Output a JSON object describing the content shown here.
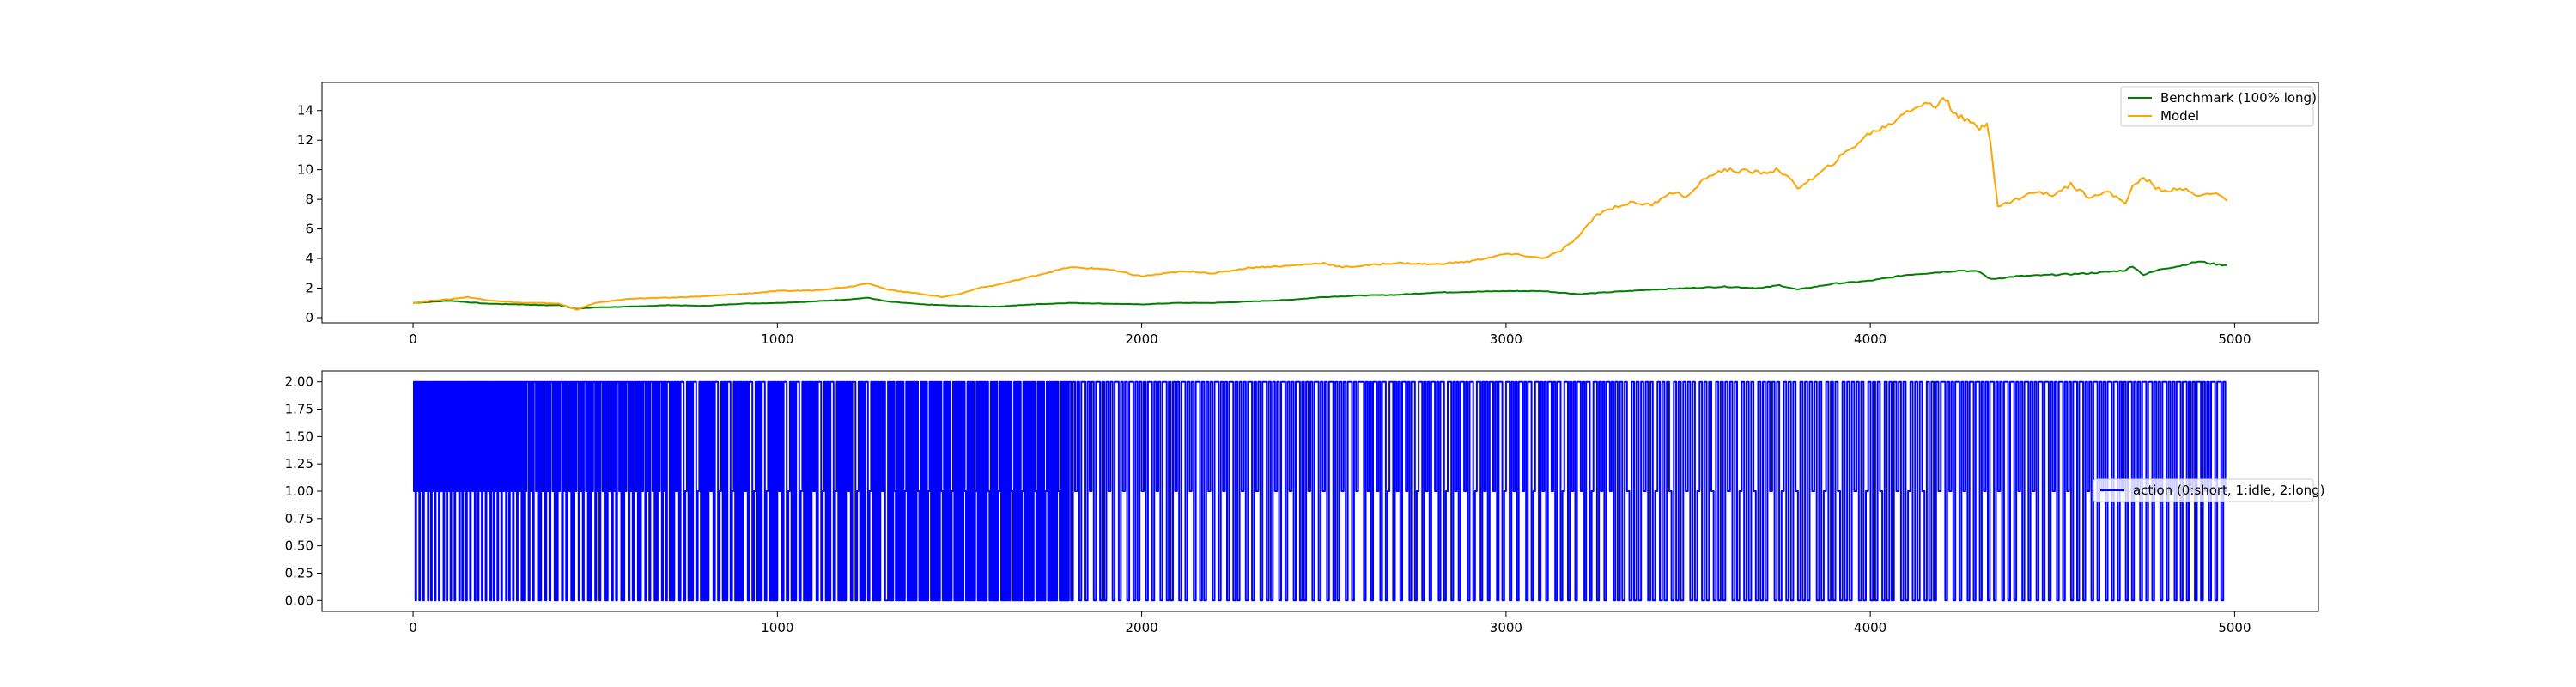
{
  "chart_data": [
    {
      "type": "line",
      "xlim": [
        -250,
        5230
      ],
      "ylim": [
        -0.35,
        15.9
      ],
      "xticks": [
        0,
        1000,
        2000,
        3000,
        4000,
        5000
      ],
      "xtick_labels": [
        "0",
        "1000",
        "2000",
        "3000",
        "4000",
        "5000"
      ],
      "yticks": [
        0,
        2,
        4,
        6,
        8,
        10,
        12,
        14
      ],
      "ytick_labels": [
        "0",
        "2",
        "4",
        "6",
        "8",
        "10",
        "12",
        "14"
      ],
      "grid": false,
      "legend_position": "top-right",
      "series": [
        {
          "name": "Benchmark (100% long)",
          "color": "#008000",
          "x": [
            0,
            100,
            200,
            300,
            350,
            400,
            450,
            500,
            600,
            700,
            800,
            900,
            1000,
            1100,
            1200,
            1250,
            1300,
            1400,
            1500,
            1600,
            1700,
            1800,
            1900,
            2000,
            2100,
            2200,
            2300,
            2400,
            2500,
            2600,
            2700,
            2800,
            2900,
            3000,
            3100,
            3200,
            3300,
            3400,
            3500,
            3600,
            3700,
            3750,
            3800,
            3900,
            4000,
            4100,
            4200,
            4250,
            4300,
            4330,
            4400,
            4500,
            4600,
            4700,
            4720,
            4750,
            4800,
            4850,
            4900,
            4950,
            4980
          ],
          "values": [
            1.0,
            1.15,
            0.95,
            0.9,
            0.85,
            0.85,
            0.6,
            0.7,
            0.75,
            0.85,
            0.8,
            0.95,
            1.0,
            1.1,
            1.25,
            1.35,
            1.1,
            0.9,
            0.8,
            0.75,
            0.9,
            1.0,
            0.95,
            0.9,
            1.0,
            1.0,
            1.1,
            1.2,
            1.4,
            1.5,
            1.55,
            1.7,
            1.75,
            1.8,
            1.8,
            1.6,
            1.75,
            1.9,
            2.0,
            2.1,
            2.0,
            2.2,
            1.9,
            2.3,
            2.5,
            2.9,
            3.1,
            3.2,
            3.1,
            2.6,
            2.8,
            2.9,
            3.0,
            3.2,
            3.5,
            2.9,
            3.3,
            3.5,
            3.8,
            3.6,
            3.55
          ]
        },
        {
          "name": "Model",
          "color": "#ffa500",
          "x": [
            0,
            50,
            100,
            150,
            200,
            300,
            350,
            400,
            450,
            500,
            600,
            700,
            800,
            900,
            1000,
            1100,
            1200,
            1250,
            1300,
            1400,
            1450,
            1500,
            1550,
            1600,
            1700,
            1800,
            1900,
            2000,
            2100,
            2150,
            2200,
            2300,
            2400,
            2500,
            2550,
            2600,
            2700,
            2800,
            2900,
            3000,
            3050,
            3100,
            3150,
            3200,
            3250,
            3300,
            3350,
            3400,
            3450,
            3500,
            3550,
            3600,
            3700,
            3750,
            3800,
            3850,
            3900,
            3950,
            4000,
            4050,
            4100,
            4150,
            4180,
            4200,
            4220,
            4250,
            4300,
            4320,
            4330,
            4340,
            4350,
            4400,
            4450,
            4500,
            4550,
            4600,
            4650,
            4700,
            4720,
            4750,
            4800,
            4850,
            4900,
            4950,
            4980
          ],
          "values": [
            1.0,
            1.15,
            1.25,
            1.4,
            1.2,
            1.0,
            1.0,
            0.95,
            0.55,
            1.0,
            1.3,
            1.35,
            1.45,
            1.6,
            1.8,
            1.85,
            2.1,
            2.35,
            1.9,
            1.6,
            1.4,
            1.6,
            2.0,
            2.2,
            2.8,
            3.4,
            3.3,
            2.8,
            3.1,
            3.1,
            3.0,
            3.4,
            3.5,
            3.7,
            3.4,
            3.5,
            3.7,
            3.6,
            3.8,
            4.3,
            4.2,
            4.0,
            4.5,
            5.5,
            7.0,
            7.5,
            7.8,
            7.6,
            8.5,
            8.2,
            9.5,
            10.0,
            9.8,
            10.0,
            8.8,
            9.5,
            10.5,
            11.5,
            12.5,
            13.0,
            14.0,
            14.5,
            14.2,
            15.0,
            14.2,
            13.5,
            12.8,
            13.2,
            12.0,
            9.5,
            7.5,
            8.0,
            8.5,
            8.3,
            9.0,
            8.2,
            8.5,
            7.8,
            8.8,
            9.5,
            8.5,
            8.8,
            8.2,
            8.5,
            7.9
          ]
        }
      ]
    },
    {
      "type": "line",
      "xlim": [
        -250,
        5230
      ],
      "ylim": [
        -0.1,
        2.1
      ],
      "xticks": [
        0,
        1000,
        2000,
        3000,
        4000,
        5000
      ],
      "xtick_labels": [
        "0",
        "1000",
        "2000",
        "3000",
        "4000",
        "5000"
      ],
      "yticks": [
        0,
        0.25,
        0.5,
        0.75,
        1.0,
        1.25,
        1.5,
        1.75,
        2.0
      ],
      "ytick_labels": [
        "0.00",
        "0.25",
        "0.50",
        "0.75",
        "1.00",
        "1.25",
        "1.50",
        "1.75",
        "2.00"
      ],
      "grid": false,
      "legend_position": "center-right",
      "series": [
        {
          "name": "action (0:short, 1:idle, 2:long)",
          "color": "#0000ff",
          "x_start": 0,
          "x_end": 4980,
          "discrete_values": [
            0,
            1,
            2
          ],
          "segments": [
            {
              "x": [
                0,
                300
              ],
              "pattern": [
                2,
                1,
                2,
                0,
                2,
                2,
                1,
                2,
                0,
                2,
                2,
                1,
                2,
                0,
                2,
                2,
                1,
                2,
                2,
                0
              ]
            },
            {
              "x": [
                300,
                700
              ],
              "pattern": [
                2,
                0,
                2,
                1,
                2,
                2,
                0,
                2,
                1,
                2,
                0,
                2,
                2,
                1,
                2,
                0
              ]
            },
            {
              "x": [
                700,
                1300
              ],
              "pattern": [
                2,
                0,
                2,
                0,
                2,
                1,
                2,
                0,
                2,
                2,
                0,
                1,
                2,
                0,
                2,
                0,
                2,
                2,
                0,
                1,
                2,
                0
              ]
            },
            {
              "x": [
                1300,
                1800
              ],
              "pattern": [
                0,
                2,
                0,
                2,
                0,
                2,
                1,
                0,
                2,
                0,
                2,
                0,
                2,
                0,
                1,
                2,
                0,
                2
              ]
            },
            {
              "x": [
                1800,
                2600
              ],
              "pattern": [
                2,
                0,
                2,
                1,
                2,
                0,
                2,
                2,
                0,
                2,
                1,
                2,
                0,
                2,
                2,
                0
              ]
            },
            {
              "x": [
                2600,
                3300
              ],
              "pattern": [
                2,
                2,
                0,
                2,
                1,
                2,
                0,
                2,
                2,
                1,
                2,
                0,
                2,
                2,
                0,
                1
              ]
            },
            {
              "x": [
                3300,
                4200
              ],
              "pattern": [
                2,
                0,
                2,
                0,
                2,
                1,
                0,
                2,
                0,
                2,
                0,
                2,
                1,
                2,
                0,
                2,
                0,
                1
              ]
            },
            {
              "x": [
                4200,
                4980
              ],
              "pattern": [
                2,
                0,
                2,
                1,
                2,
                0,
                2,
                2,
                0,
                2,
                1,
                2,
                0,
                2,
                2,
                0,
                2
              ]
            }
          ]
        }
      ]
    }
  ]
}
